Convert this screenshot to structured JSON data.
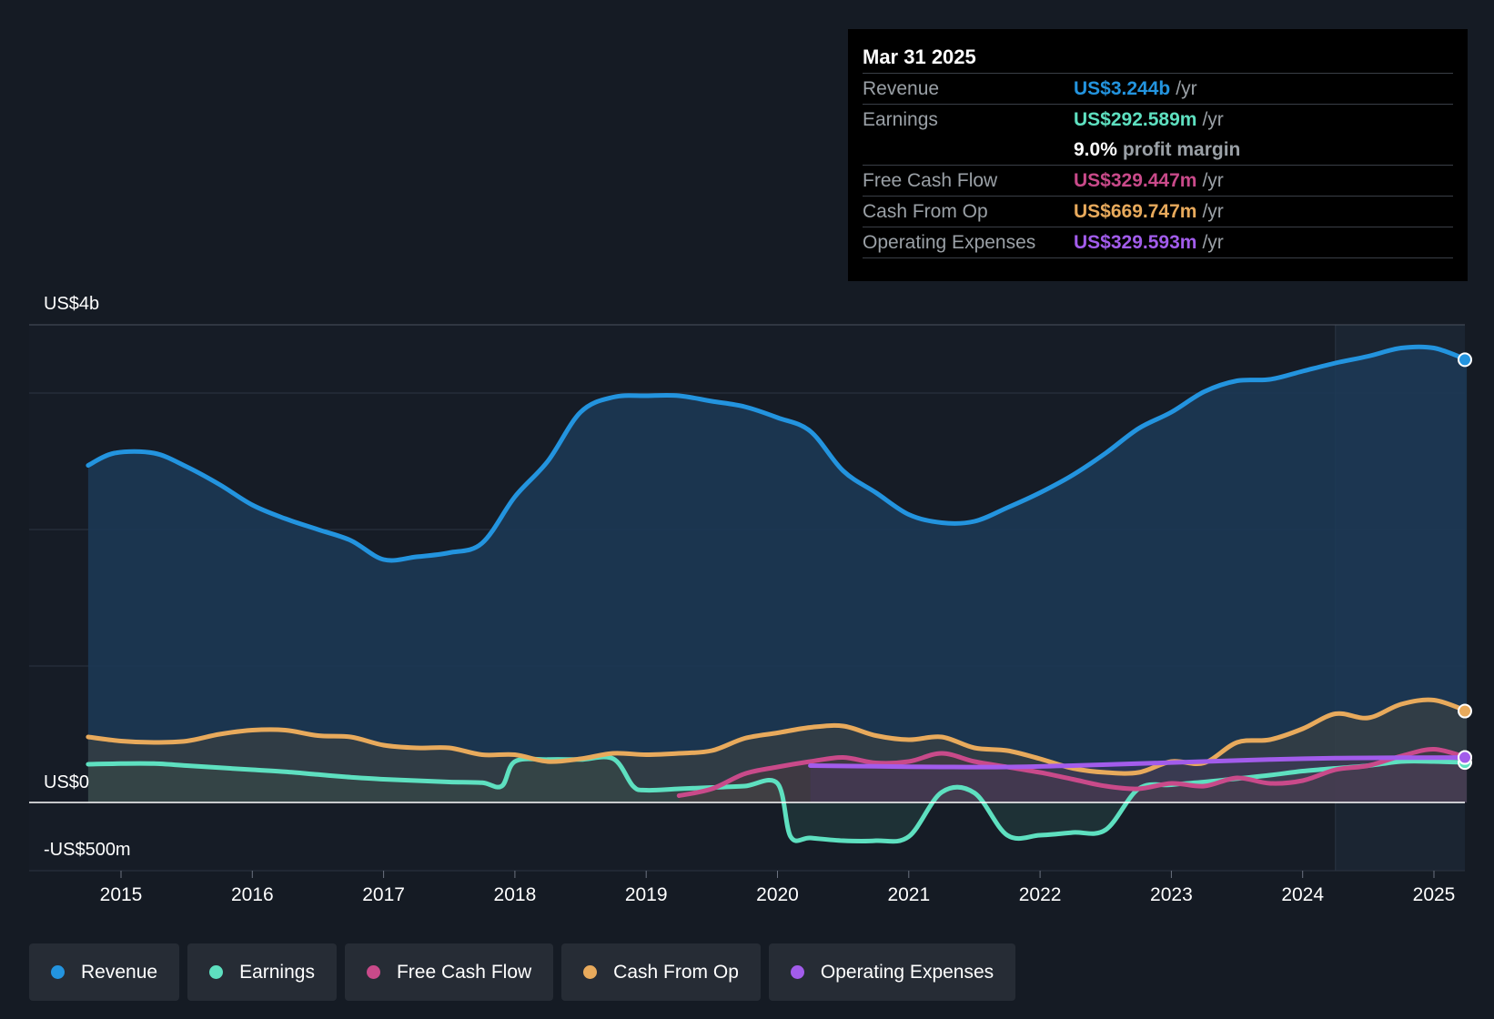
{
  "chart_data": {
    "type": "line",
    "y_axis_labels": [
      "US$4b",
      "US$0",
      "-US$500m"
    ],
    "ylim": [
      -500,
      3500
    ],
    "x_ticks": [
      "2015",
      "2016",
      "2017",
      "2018",
      "2019",
      "2020",
      "2021",
      "2022",
      "2023",
      "2024",
      "2025"
    ],
    "xlim": [
      2014.5,
      2025.25
    ],
    "forecast_start": 2024.25,
    "series": [
      {
        "name": "Revenue",
        "color": "#2394df",
        "x": [
          2014.75,
          2014.95,
          2015.25,
          2015.5,
          2015.75,
          2016.0,
          2016.25,
          2016.5,
          2016.75,
          2017.0,
          2017.25,
          2017.5,
          2017.75,
          2018.0,
          2018.25,
          2018.5,
          2018.75,
          2019.0,
          2019.25,
          2019.5,
          2019.75,
          2020.0,
          2020.25,
          2020.5,
          2020.75,
          2021.0,
          2021.25,
          2021.5,
          2021.75,
          2022.0,
          2022.25,
          2022.5,
          2022.75,
          2023.0,
          2023.25,
          2023.5,
          2023.75,
          2024.0,
          2024.25,
          2024.5,
          2024.75,
          2025.0,
          2025.25
        ],
        "values": [
          2470,
          2560,
          2560,
          2460,
          2330,
          2180,
          2080,
          2000,
          1920,
          1780,
          1800,
          1830,
          1900,
          2240,
          2500,
          2860,
          2970,
          2980,
          2980,
          2940,
          2900,
          2820,
          2720,
          2430,
          2270,
          2110,
          2050,
          2060,
          2160,
          2270,
          2400,
          2560,
          2740,
          2860,
          3010,
          3090,
          3100,
          3160,
          3220,
          3270,
          3330,
          3330,
          3244
        ]
      },
      {
        "name": "Earnings",
        "color": "#5ee0c0",
        "x": [
          2014.75,
          2015.0,
          2015.25,
          2015.5,
          2015.75,
          2016.0,
          2016.25,
          2016.5,
          2016.75,
          2017.0,
          2017.25,
          2017.5,
          2017.75,
          2017.9,
          2018.0,
          2018.25,
          2018.5,
          2018.75,
          2018.9,
          2019.0,
          2019.25,
          2019.5,
          2019.75,
          2020.0,
          2020.1,
          2020.25,
          2020.5,
          2020.75,
          2021.0,
          2021.25,
          2021.5,
          2021.75,
          2022.0,
          2022.25,
          2022.5,
          2022.75,
          2023.0,
          2023.25,
          2023.5,
          2023.75,
          2024.0,
          2024.25,
          2024.5,
          2024.75,
          2025.0,
          2025.25
        ],
        "values": [
          280,
          285,
          285,
          270,
          255,
          240,
          225,
          205,
          185,
          170,
          160,
          150,
          145,
          120,
          300,
          315,
          315,
          320,
          120,
          90,
          100,
          110,
          120,
          140,
          -250,
          -260,
          -280,
          -280,
          -250,
          75,
          70,
          -240,
          -240,
          -220,
          -200,
          100,
          130,
          150,
          175,
          200,
          230,
          250,
          270,
          300,
          300,
          292.589
        ]
      },
      {
        "name": "Free Cash Flow",
        "color": "#c94a8a",
        "x": [
          2019.25,
          2019.5,
          2019.75,
          2020.0,
          2020.25,
          2020.5,
          2020.75,
          2021.0,
          2021.25,
          2021.5,
          2021.75,
          2022.0,
          2022.25,
          2022.5,
          2022.75,
          2023.0,
          2023.25,
          2023.5,
          2023.75,
          2024.0,
          2024.25,
          2024.5,
          2024.75,
          2025.0,
          2025.25
        ],
        "values": [
          50,
          100,
          210,
          260,
          300,
          330,
          290,
          300,
          360,
          300,
          260,
          220,
          170,
          120,
          100,
          140,
          120,
          180,
          140,
          160,
          240,
          270,
          340,
          390,
          329.447
        ]
      },
      {
        "name": "Cash From Op",
        "color": "#e8aa5c",
        "x": [
          2014.75,
          2015.0,
          2015.25,
          2015.5,
          2015.75,
          2016.0,
          2016.25,
          2016.5,
          2016.75,
          2017.0,
          2017.25,
          2017.5,
          2017.75,
          2018.0,
          2018.25,
          2018.5,
          2018.75,
          2019.0,
          2019.25,
          2019.5,
          2019.75,
          2020.0,
          2020.25,
          2020.5,
          2020.75,
          2021.0,
          2021.25,
          2021.5,
          2021.75,
          2022.0,
          2022.25,
          2022.5,
          2022.75,
          2023.0,
          2023.25,
          2023.5,
          2023.75,
          2024.0,
          2024.25,
          2024.5,
          2024.75,
          2025.0,
          2025.25
        ],
        "values": [
          480,
          450,
          440,
          450,
          500,
          530,
          530,
          490,
          480,
          420,
          400,
          400,
          350,
          350,
          300,
          320,
          360,
          350,
          360,
          380,
          470,
          510,
          550,
          560,
          490,
          460,
          480,
          400,
          380,
          320,
          250,
          220,
          220,
          300,
          290,
          440,
          460,
          540,
          650,
          620,
          720,
          750,
          669.747
        ]
      },
      {
        "name": "Operating Expenses",
        "color": "#a25ceb",
        "x": [
          2020.25,
          2020.75,
          2021.25,
          2021.75,
          2022.25,
          2022.75,
          2023.25,
          2023.75,
          2024.25,
          2024.75,
          2025.25
        ],
        "values": [
          270,
          265,
          260,
          260,
          270,
          285,
          300,
          315,
          325,
          328,
          329.593
        ]
      }
    ]
  },
  "tooltip": {
    "date": "Mar 31 2025",
    "rows": [
      {
        "label": "Revenue",
        "value": "US$3.244b",
        "unit": "/yr",
        "color": "#2394df"
      },
      {
        "label": "Earnings",
        "value": "US$292.589m",
        "unit": "/yr",
        "color": "#5ee0c0"
      },
      {
        "label": "",
        "value": "9.0%",
        "unit": "profit margin",
        "color": "#ffffff"
      },
      {
        "label": "Free Cash Flow",
        "value": "US$329.447m",
        "unit": "/yr",
        "color": "#c94a8a"
      },
      {
        "label": "Cash From Op",
        "value": "US$669.747m",
        "unit": "/yr",
        "color": "#e8aa5c"
      },
      {
        "label": "Operating Expenses",
        "value": "US$329.593m",
        "unit": "/yr",
        "color": "#a25ceb"
      }
    ]
  },
  "legend": [
    {
      "label": "Revenue",
      "color": "#2394df"
    },
    {
      "label": "Earnings",
      "color": "#5ee0c0"
    },
    {
      "label": "Free Cash Flow",
      "color": "#c94a8a"
    },
    {
      "label": "Cash From Op",
      "color": "#e8aa5c"
    },
    {
      "label": "Operating Expenses",
      "color": "#a25ceb"
    }
  ]
}
